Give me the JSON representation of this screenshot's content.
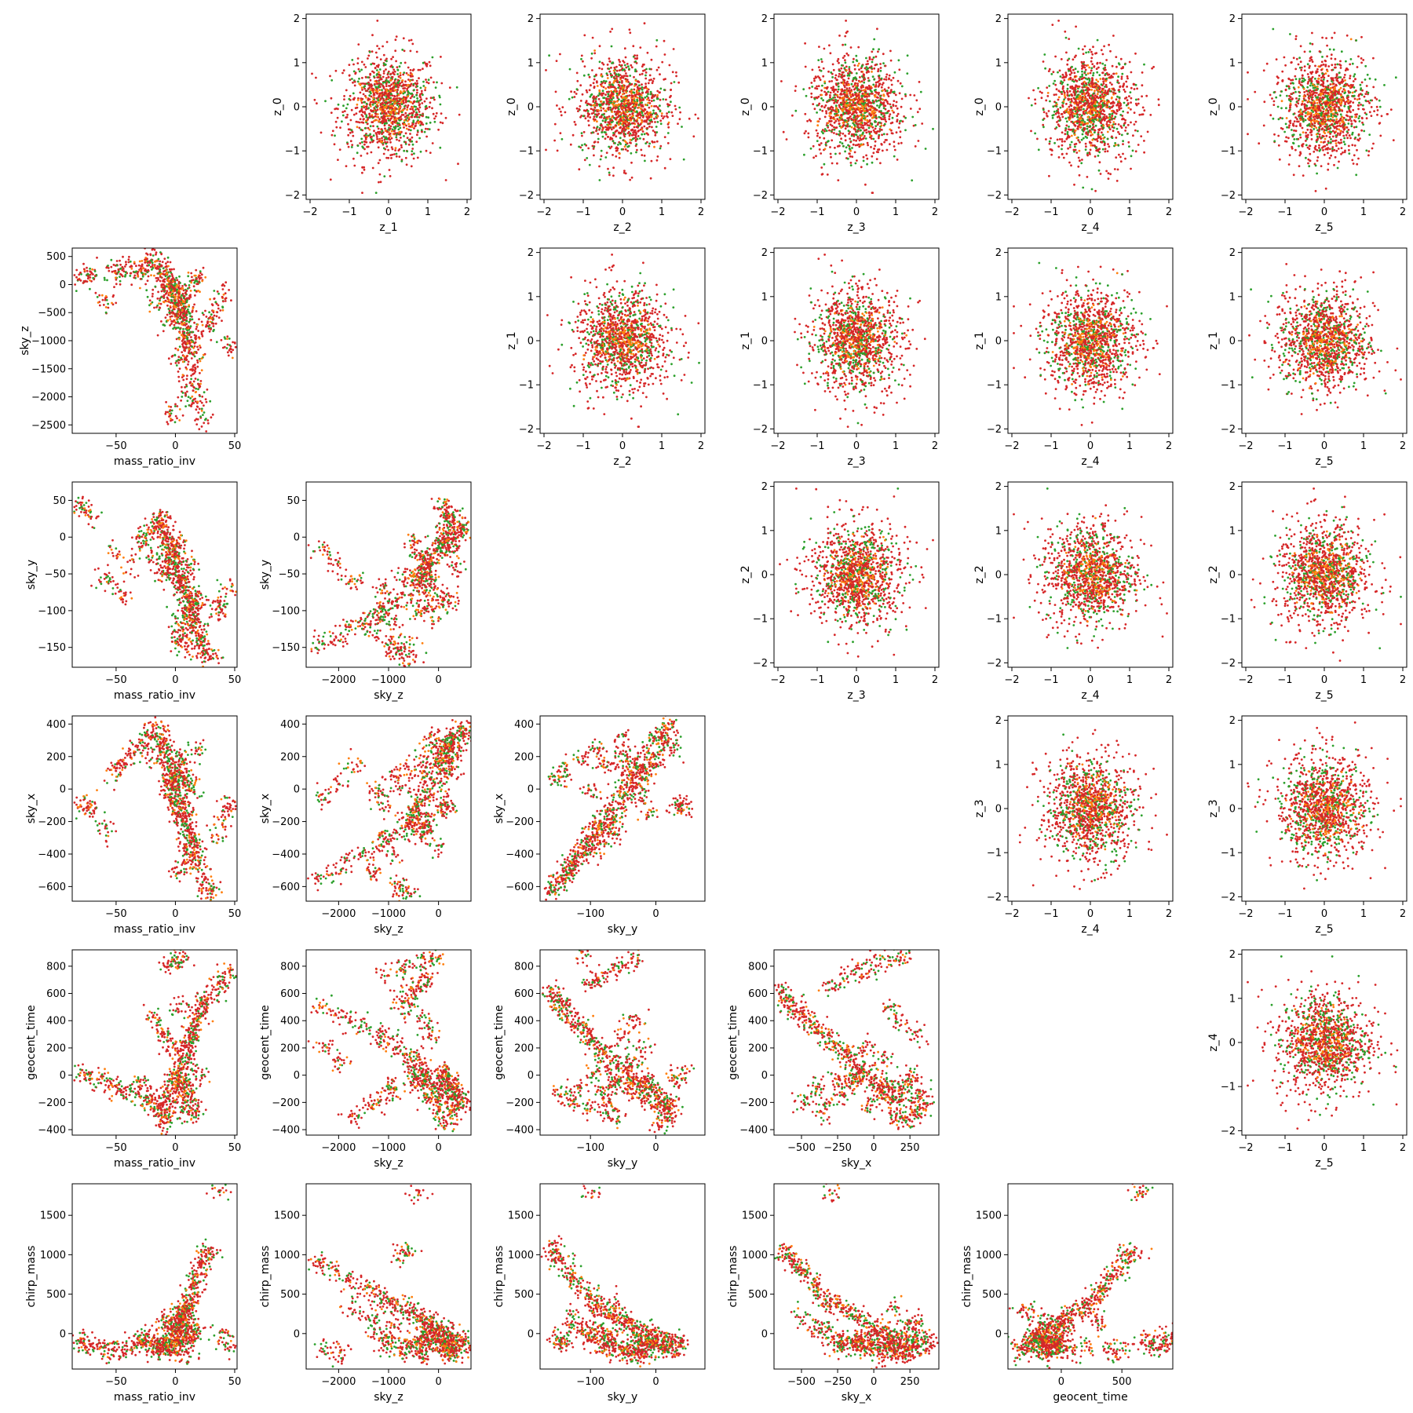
{
  "chart_data": {
    "type": "scatter",
    "layout": "pair-grid",
    "rows": 6,
    "cols": 6,
    "colors": {
      "red": "#d62728",
      "green": "#2ca02c",
      "orange": "#ff7f0e"
    },
    "variables": {
      "z_0": {
        "lim": [
          -2.1,
          2.1
        ],
        "ticks": [
          -2,
          -1,
          0,
          1,
          2
        ],
        "kind": "normal"
      },
      "z_1": {
        "lim": [
          -2.1,
          2.1
        ],
        "ticks": [
          -2,
          -1,
          0,
          1,
          2
        ],
        "kind": "normal"
      },
      "z_2": {
        "lim": [
          -2.1,
          2.1
        ],
        "ticks": [
          -2,
          -1,
          0,
          1,
          2
        ],
        "kind": "normal"
      },
      "z_3": {
        "lim": [
          -2.1,
          2.1
        ],
        "ticks": [
          -2,
          -1,
          0,
          1,
          2
        ],
        "kind": "normal"
      },
      "z_4": {
        "lim": [
          -2.1,
          2.1
        ],
        "ticks": [
          -2,
          -1,
          0,
          1,
          2
        ],
        "kind": "normal"
      },
      "z_5": {
        "lim": [
          -2.1,
          2.1
        ],
        "ticks": [
          -2,
          -1,
          0,
          1,
          2
        ],
        "kind": "normal"
      },
      "mass_ratio_inv": {
        "lim": [
          -87,
          52
        ],
        "ticks": [
          -50,
          0,
          50
        ],
        "kind": "physical"
      },
      "sky_z": {
        "lim": [
          -2650,
          650
        ],
        "ticks": [
          -2500,
          -2000,
          -1500,
          -1000,
          -500,
          0,
          500
        ],
        "kind": "physical"
      },
      "sky_y": {
        "lim": [
          -177,
          75
        ],
        "ticks": [
          -150,
          -100,
          -50,
          0,
          50
        ],
        "kind": "physical"
      },
      "sky_x": {
        "lim": [
          -690,
          450
        ],
        "ticks": [
          -600,
          -400,
          -200,
          0,
          200,
          400
        ],
        "kind": "physical"
      },
      "geocent_time": {
        "lim": [
          -440,
          920
        ],
        "ticks": [
          -400,
          -200,
          0,
          200,
          400,
          600,
          800
        ],
        "kind": "physical"
      },
      "chirp_mass": {
        "lim": [
          -450,
          1900
        ],
        "ticks": [
          0,
          500,
          1000,
          1500
        ],
        "kind": "physical"
      }
    },
    "x_tick_overrides": {
      "sky_z": [
        -2000,
        -1000,
        0
      ],
      "sky_y": [
        -100,
        0
      ],
      "sky_x": [
        -500,
        -250,
        0,
        250
      ],
      "geocent_time": [
        0,
        500
      ],
      "chirp_mass": [
        0,
        500,
        1000,
        1500
      ]
    },
    "panels": [
      {
        "row": 0,
        "col": 1,
        "x": "z_1",
        "y": "z_0"
      },
      {
        "row": 0,
        "col": 2,
        "x": "z_2",
        "y": "z_0"
      },
      {
        "row": 0,
        "col": 3,
        "x": "z_3",
        "y": "z_0"
      },
      {
        "row": 0,
        "col": 4,
        "x": "z_4",
        "y": "z_0"
      },
      {
        "row": 0,
        "col": 5,
        "x": "z_5",
        "y": "z_0"
      },
      {
        "row": 1,
        "col": 0,
        "x": "mass_ratio_inv",
        "y": "sky_z"
      },
      {
        "row": 1,
        "col": 2,
        "x": "z_2",
        "y": "z_1"
      },
      {
        "row": 1,
        "col": 3,
        "x": "z_3",
        "y": "z_1"
      },
      {
        "row": 1,
        "col": 4,
        "x": "z_4",
        "y": "z_1"
      },
      {
        "row": 1,
        "col": 5,
        "x": "z_5",
        "y": "z_1"
      },
      {
        "row": 2,
        "col": 0,
        "x": "mass_ratio_inv",
        "y": "sky_y"
      },
      {
        "row": 2,
        "col": 1,
        "x": "sky_z",
        "y": "sky_y"
      },
      {
        "row": 2,
        "col": 3,
        "x": "z_3",
        "y": "z_2"
      },
      {
        "row": 2,
        "col": 4,
        "x": "z_4",
        "y": "z_2"
      },
      {
        "row": 2,
        "col": 5,
        "x": "z_5",
        "y": "z_2"
      },
      {
        "row": 3,
        "col": 0,
        "x": "mass_ratio_inv",
        "y": "sky_x"
      },
      {
        "row": 3,
        "col": 1,
        "x": "sky_z",
        "y": "sky_x"
      },
      {
        "row": 3,
        "col": 2,
        "x": "sky_y",
        "y": "sky_x"
      },
      {
        "row": 3,
        "col": 4,
        "x": "z_4",
        "y": "z_3"
      },
      {
        "row": 3,
        "col": 5,
        "x": "z_5",
        "y": "z_3"
      },
      {
        "row": 4,
        "col": 0,
        "x": "mass_ratio_inv",
        "y": "geocent_time"
      },
      {
        "row": 4,
        "col": 1,
        "x": "sky_z",
        "y": "geocent_time"
      },
      {
        "row": 4,
        "col": 2,
        "x": "sky_y",
        "y": "geocent_time"
      },
      {
        "row": 4,
        "col": 3,
        "x": "sky_x",
        "y": "geocent_time"
      },
      {
        "row": 4,
        "col": 5,
        "x": "z_5",
        "y": "z_4"
      },
      {
        "row": 5,
        "col": 0,
        "x": "mass_ratio_inv",
        "y": "chirp_mass"
      },
      {
        "row": 5,
        "col": 1,
        "x": "sky_z",
        "y": "chirp_mass"
      },
      {
        "row": 5,
        "col": 2,
        "x": "sky_y",
        "y": "chirp_mass"
      },
      {
        "row": 5,
        "col": 3,
        "x": "sky_x",
        "y": "chirp_mass"
      },
      {
        "row": 5,
        "col": 4,
        "x": "geocent_time",
        "y": "chirp_mass"
      }
    ],
    "physical_points": {
      "mass_ratio_inv": [
        -80,
        -72,
        -60,
        -52,
        -45,
        -38,
        -30,
        -25,
        -20,
        -15,
        -12,
        -10,
        -8,
        -6,
        -4,
        -2,
        0,
        2,
        4,
        6,
        8,
        10,
        12,
        14,
        16,
        18,
        20,
        22,
        25,
        30,
        35,
        40,
        45,
        -5,
        0,
        5,
        10,
        3,
        8,
        12,
        -3,
        1,
        7,
        15,
        20,
        -10,
        -18,
        2,
        9,
        14
      ],
      "sky_z": [
        120,
        150,
        -300,
        260,
        200,
        350,
        180,
        300,
        500,
        450,
        300,
        250,
        100,
        50,
        0,
        -50,
        -200,
        -300,
        -400,
        -500,
        -600,
        -800,
        -1000,
        -1200,
        -1500,
        -1800,
        -2100,
        -2400,
        -800,
        -600,
        -400,
        -200,
        -1100,
        -700,
        -300,
        -100,
        -900,
        -1300,
        -1700,
        -2000,
        -2300,
        -500,
        -250,
        0,
        150,
        -150,
        -350,
        -650,
        -950,
        -1250
      ],
      "sky_y": [
        40,
        30,
        -60,
        -20,
        -80,
        -40,
        -10,
        0,
        10,
        20,
        15,
        25,
        5,
        -5,
        -15,
        -25,
        -35,
        -45,
        -55,
        -65,
        -75,
        -85,
        -95,
        -105,
        -115,
        -125,
        -135,
        -145,
        -155,
        -160,
        -100,
        -90,
        -70,
        -50,
        -30,
        -110,
        -120,
        -130,
        -60,
        -40,
        -20,
        -10,
        -70,
        -80,
        -90,
        -50,
        -30,
        -140,
        -150,
        -100
      ],
      "sky_x": [
        -100,
        -120,
        -250,
        100,
        150,
        200,
        250,
        300,
        350,
        380,
        300,
        250,
        200,
        150,
        100,
        50,
        0,
        -50,
        -100,
        -150,
        -200,
        -250,
        -300,
        -350,
        -400,
        -450,
        -500,
        -550,
        -600,
        -620,
        -300,
        -200,
        -100,
        0,
        100,
        200,
        -400,
        -500,
        150,
        50,
        -50,
        -150,
        -250,
        -350,
        250,
        300,
        180,
        120,
        60,
        -20
      ],
      "geocent_time": [
        0,
        -20,
        -40,
        -80,
        -100,
        -120,
        -60,
        -150,
        -180,
        -200,
        -250,
        -300,
        -350,
        -200,
        -150,
        -100,
        -50,
        0,
        50,
        100,
        150,
        200,
        250,
        300,
        350,
        400,
        450,
        500,
        550,
        600,
        650,
        700,
        750,
        800,
        850,
        870,
        -100,
        -200,
        -300,
        100,
        200,
        -50,
        -150,
        -250,
        0,
        300,
        400,
        500,
        -120,
        -220
      ],
      "chirp_mass": [
        -100,
        -150,
        -200,
        -250,
        -180,
        -220,
        -120,
        -50,
        -80,
        -140,
        -170,
        -190,
        -210,
        -100,
        0,
        50,
        100,
        150,
        200,
        250,
        300,
        350,
        400,
        500,
        600,
        700,
        800,
        900,
        1000,
        1050,
        1800,
        -50,
        -150,
        -200,
        -100,
        0,
        100,
        200,
        300,
        -250,
        -180,
        -120,
        -60,
        20,
        80,
        140,
        -230,
        -160,
        -90,
        -30
      ]
    },
    "series_note": "red, green and orange point clouds per panel"
  }
}
